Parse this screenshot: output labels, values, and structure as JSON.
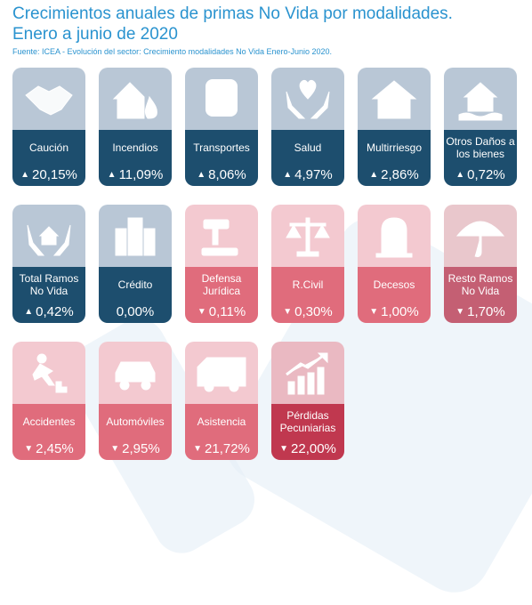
{
  "header": {
    "title_line1": "Crecimientos anuales de primas No Vida por modalidades.",
    "title_line2": "Enero a junio de 2020",
    "source": "Fuente: ICEA - Evolución del sector: Crecimiento modalidades No Vida Enero-Junio 2020."
  },
  "colors": {
    "accent": "#2a93cf",
    "blue_dark": "#1d4e6e",
    "pink": "#e06c7c",
    "red": "#c0384f"
  },
  "tiles": [
    {
      "label": "Caución",
      "value": "20,15%",
      "direction": "up",
      "icon": "handshake-icon"
    },
    {
      "label": "Incendios",
      "value": "11,09%",
      "direction": "up",
      "icon": "fire-house-icon"
    },
    {
      "label": "Transportes",
      "value": "8,06%",
      "direction": "up",
      "icon": "bus-icon"
    },
    {
      "label": "Salud",
      "value": "4,97%",
      "direction": "up",
      "icon": "heart-hands-icon"
    },
    {
      "label": "Multirriesgo",
      "value": "2,86%",
      "direction": "up",
      "icon": "house-icon"
    },
    {
      "label": "Otros Daños a los bienes",
      "value": "0,72%",
      "direction": "up",
      "icon": "flood-house-icon"
    },
    {
      "label": "Total Ramos No Vida",
      "value": "0,42%",
      "direction": "up",
      "icon": "house-hands-icon"
    },
    {
      "label": "Crédito",
      "value": "0,00%",
      "direction": "none",
      "icon": "bank-icon"
    },
    {
      "label": "Defensa Jurídica",
      "value": "0,11%",
      "direction": "down",
      "icon": "gavel-icon"
    },
    {
      "label": "R.Civil",
      "value": "0,30%",
      "direction": "down",
      "icon": "scales-icon"
    },
    {
      "label": "Decesos",
      "value": "1,00%",
      "direction": "down",
      "icon": "tombstone-icon"
    },
    {
      "label": "Resto Ramos No Vida",
      "value": "1,70%",
      "direction": "down",
      "icon": "umbrella-icon"
    },
    {
      "label": "Accidentes",
      "value": "2,45%",
      "direction": "down",
      "icon": "falling-person-icon"
    },
    {
      "label": "Automóviles",
      "value": "2,95%",
      "direction": "down",
      "icon": "car-icon"
    },
    {
      "label": "Asistencia",
      "value": "21,72%",
      "direction": "down",
      "icon": "ambulance-icon"
    },
    {
      "label": "Pérdidas Pecuniarias",
      "value": "22,00%",
      "direction": "down",
      "icon": "growth-chart-icon"
    }
  ]
}
